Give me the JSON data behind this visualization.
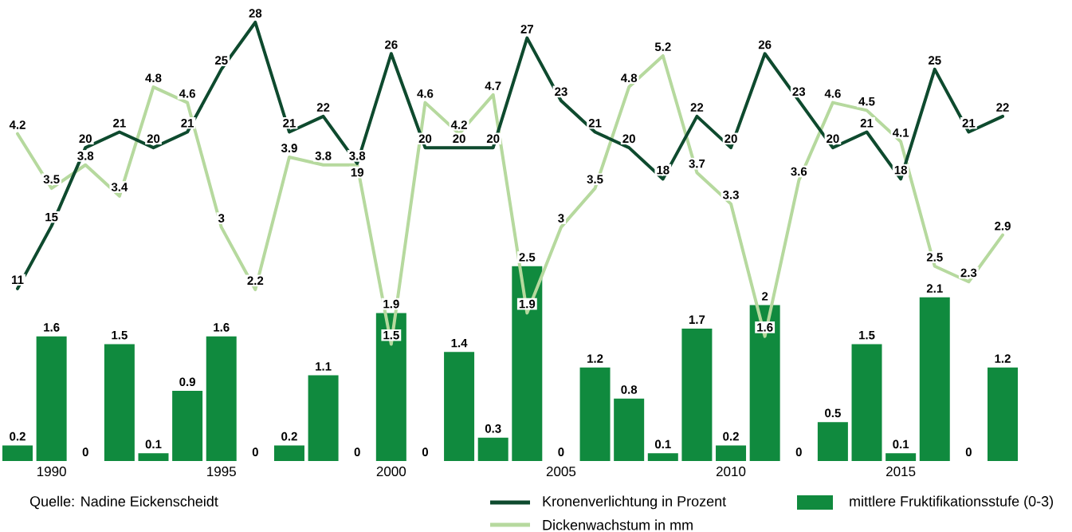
{
  "chart_data": {
    "type": "bar",
    "categories": [
      null,
      "1990",
      null,
      null,
      null,
      null,
      "1995",
      null,
      null,
      null,
      null,
      "2000",
      null,
      null,
      null,
      null,
      "2005",
      null,
      null,
      null,
      null,
      "2010",
      null,
      null,
      null,
      null,
      "2015",
      null,
      null,
      null
    ],
    "tick_labels": "x",
    "ylim": [
      0,
      5.2
    ],
    "series": [
      {
        "name": "mittlere Fruktifikationsstufe (0-3)",
        "axis": "y",
        "color": "#108a3e",
        "values": [
          0.2,
          1.6,
          0,
          1.5,
          0.1,
          0.9,
          1.6,
          0,
          0.2,
          1.1,
          0,
          1.9,
          0,
          1.4,
          0.3,
          2.5,
          0,
          1.2,
          0.8,
          0.1,
          1.7,
          0.2,
          2,
          0,
          0.5,
          1.5,
          0.1,
          2.1,
          0,
          1.2
        ]
      },
      {
        "name": "Kronenverlichtung in Prozent",
        "type": "line",
        "axis": "y2",
        "color": "#0e4a2e",
        "values": [
          11,
          15,
          20,
          21,
          20,
          21,
          25,
          28,
          21,
          22,
          19,
          26,
          20,
          20,
          20,
          27,
          23,
          21,
          20,
          18,
          22,
          20,
          26,
          23,
          20,
          21,
          18,
          25,
          21,
          22
        ]
      },
      {
        "name": "Dickenwachstum in mm",
        "type": "line",
        "axis": "y",
        "color": "#b6d99e",
        "values": [
          4.2,
          3.5,
          3.8,
          3.4,
          4.8,
          4.6,
          3,
          2.2,
          3.9,
          3.8,
          3.8,
          1.5,
          4.6,
          4.2,
          4.7,
          1.9,
          3,
          3.5,
          4.8,
          5.2,
          3.7,
          3.3,
          1.6,
          3.6,
          4.6,
          4.5,
          4.1,
          2.5,
          2.3,
          2.9
        ]
      }
    ],
    "data_labels": true,
    "legend": "bottom",
    "line_style": "solid",
    "marker": "none",
    "annotations": [
      "Quelle: Nadine Eickenscheidt"
    ]
  }
}
